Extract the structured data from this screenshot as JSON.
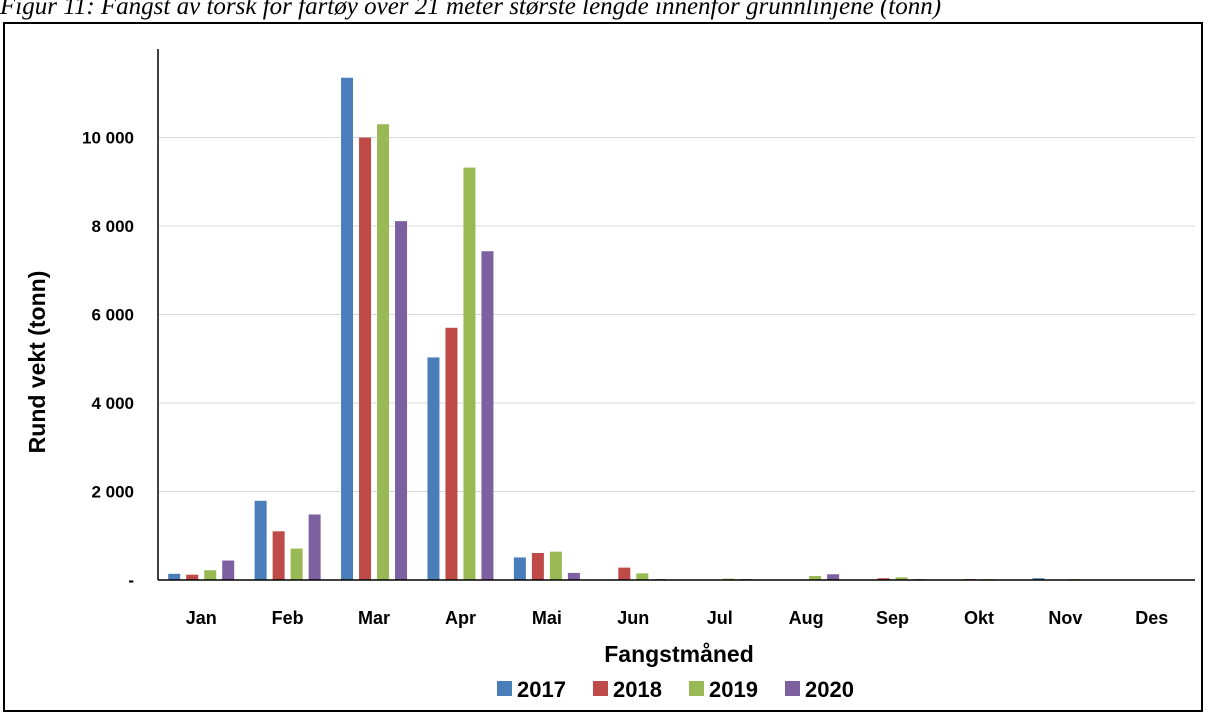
{
  "caption": "Figur 11: Fangst av torsk for fartøy over 21 meter største lengde innenfor grunnlinjene (tonn)",
  "chart_data": {
    "type": "bar",
    "categories": [
      "Jan",
      "Feb",
      "Mar",
      "Apr",
      "Mai",
      "Jun",
      "Jul",
      "Aug",
      "Sep",
      "Okt",
      "Nov",
      "Des"
    ],
    "series": [
      {
        "name": "2017",
        "color": "#4a7ebb",
        "values": [
          140,
          1790,
          11350,
          5030,
          510,
          10,
          10,
          10,
          10,
          10,
          40,
          5
        ]
      },
      {
        "name": "2018",
        "color": "#be4b48",
        "values": [
          120,
          1100,
          10000,
          5700,
          610,
          280,
          10,
          10,
          40,
          20,
          10,
          5
        ]
      },
      {
        "name": "2019",
        "color": "#98b954",
        "values": [
          220,
          710,
          10300,
          9320,
          640,
          150,
          30,
          90,
          60,
          20,
          20,
          5
        ]
      },
      {
        "name": "2020",
        "color": "#7d60a0",
        "values": [
          440,
          1480,
          8110,
          7430,
          160,
          20,
          20,
          130,
          20,
          10,
          10,
          5
        ]
      }
    ],
    "ylim": [
      0,
      12000
    ],
    "yticks": [
      {
        "value": 0,
        "label": "-"
      },
      {
        "value": 2000,
        "label": "2 000"
      },
      {
        "value": 4000,
        "label": "4 000"
      },
      {
        "value": 6000,
        "label": "6 000"
      },
      {
        "value": 8000,
        "label": "8 000"
      },
      {
        "value": 10000,
        "label": "10 000"
      }
    ],
    "xlabel": "Fangstmåned",
    "ylabel": "Rund vekt (tonn)",
    "grid": true,
    "legend": "bottom"
  }
}
